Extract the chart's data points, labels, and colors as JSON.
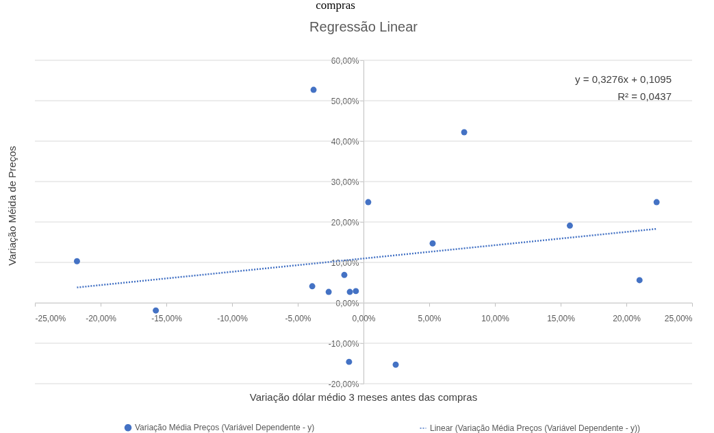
{
  "chart_data": {
    "type": "scatter",
    "title": "Regressão Linear",
    "xlabel": "Variação dólar médio 3 meses antes das compras",
    "ylabel": "Variação Méida de Preços",
    "annotations": [
      "compras",
      "y = 0,3276x + 0,1095",
      "R² = 0,0437"
    ],
    "xlim": [
      -25,
      25
    ],
    "ylim": [
      -20,
      60
    ],
    "xticks": [
      {
        "value": -25,
        "label": "-25,00%"
      },
      {
        "value": -20,
        "label": "-20,00%"
      },
      {
        "value": -15,
        "label": "-15,00%"
      },
      {
        "value": -10,
        "label": "-10,00%"
      },
      {
        "value": -5,
        "label": "-5,00%"
      },
      {
        "value": 0,
        "label": "0,00%"
      },
      {
        "value": 5,
        "label": "5,00%"
      },
      {
        "value": 10,
        "label": "10,00%"
      },
      {
        "value": 15,
        "label": "15,00%"
      },
      {
        "value": 20,
        "label": "20,00%"
      },
      {
        "value": 25,
        "label": "25,00%"
      }
    ],
    "yticks": [
      {
        "value": -20,
        "label": "-20,00%"
      },
      {
        "value": -10,
        "label": "-10,00%"
      },
      {
        "value": 0,
        "label": "0,00%"
      },
      {
        "value": 10,
        "label": "10,00%"
      },
      {
        "value": 20,
        "label": "20,00%"
      },
      {
        "value": 30,
        "label": "30,00%"
      },
      {
        "value": 40,
        "label": "40,00%"
      },
      {
        "value": 50,
        "label": "50,00%"
      },
      {
        "value": 60,
        "label": "60,00%"
      }
    ],
    "grid": "y",
    "legend": "bottom",
    "marker": "circle",
    "series": [
      {
        "name": "Variação Média Preços (Variável Dependente - y)",
        "color": "#4472c4",
        "x": [
          -21.8,
          -15.8,
          -3.8,
          -3.9,
          -2.65,
          -1.46,
          -1.04,
          -0.58,
          0.36,
          5.26,
          7.66,
          15.7,
          21.0,
          22.3,
          -1.1,
          2.45
        ],
        "values": [
          10.3,
          -1.9,
          52.7,
          4.1,
          2.7,
          6.9,
          2.7,
          2.9,
          24.9,
          14.7,
          42.2,
          19.1,
          5.6,
          24.9,
          -14.6,
          -15.3
        ]
      },
      {
        "name": "Linear (Variação Média Preços (Variável Dependente - y))",
        "type": "line",
        "line_style": "dotted",
        "color": "#4472c4",
        "marker": "none",
        "x": [
          -21.8,
          22.3
        ],
        "values": [
          3.8,
          18.3
        ]
      }
    ]
  }
}
